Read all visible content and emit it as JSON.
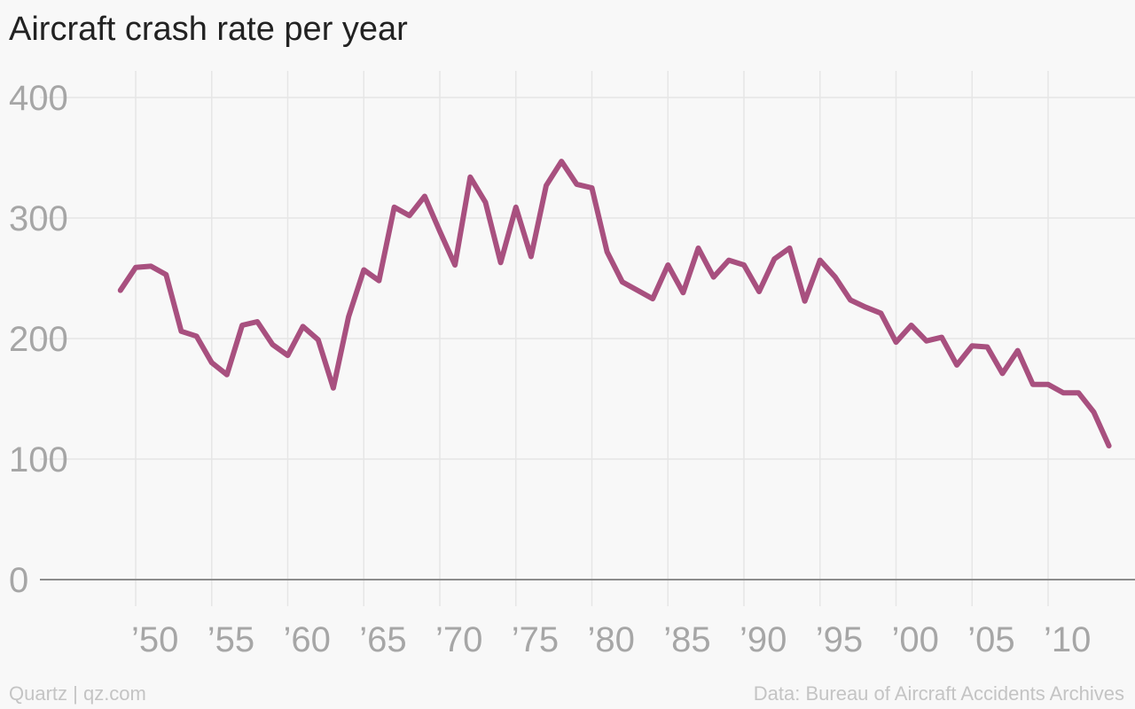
{
  "title": "Aircraft crash rate per year",
  "footer": {
    "source_left": "Quartz | qz.com",
    "source_right": "Data: Bureau of Aircraft Accidents Archives"
  },
  "colors": {
    "line": "#a8507f",
    "grid": "#e6e6e6",
    "axis": "#8c8c8c",
    "tick_text": "#a6a6a6",
    "background": "#f8f8f8"
  },
  "chart_data": {
    "type": "line",
    "title": "Aircraft crash rate per year",
    "xlabel": "",
    "ylabel": "",
    "xlim": [
      1947,
      2014.5
    ],
    "ylim": [
      0,
      400
    ],
    "grid": true,
    "yticks": [
      0,
      100,
      200,
      300,
      400
    ],
    "ytick_labels": [
      "0",
      "100",
      "200",
      "300",
      "400"
    ],
    "xticks": [
      1950,
      1955,
      1960,
      1965,
      1970,
      1975,
      1980,
      1985,
      1990,
      1995,
      2000,
      2005,
      2010
    ],
    "xtick_labels": [
      "’50",
      "’55",
      "’60",
      "’65",
      "’70",
      "’75",
      "’80",
      "’85",
      "’90",
      "’95",
      "’00",
      "’05",
      "’10"
    ],
    "series": [
      {
        "x": [
          1949,
          1950,
          1951,
          1952,
          1953,
          1954,
          1955,
          1956,
          1957,
          1958,
          1959,
          1960,
          1961,
          1962,
          1963,
          1964,
          1965,
          1966,
          1967,
          1968,
          1969,
          1970,
          1971,
          1972,
          1973,
          1974,
          1975,
          1976,
          1977,
          1978,
          1979,
          1980,
          1981,
          1982,
          1983,
          1984,
          1985,
          1986,
          1987,
          1988,
          1989,
          1990,
          1991,
          1992,
          1993,
          1994,
          1995,
          1996,
          1997,
          1998,
          1999,
          2000,
          2001,
          2002,
          2003,
          2004,
          2005,
          2006,
          2007,
          2008,
          2009,
          2010,
          2011,
          2012,
          2013,
          2014
        ],
        "y": [
          240,
          259,
          260,
          253,
          206,
          202,
          180,
          170,
          211,
          214,
          195,
          186,
          210,
          199,
          159,
          218,
          257,
          248,
          309,
          302,
          318,
          289,
          261,
          334,
          313,
          263,
          309,
          268,
          327,
          347,
          328,
          325,
          272,
          247,
          240,
          233,
          261,
          238,
          275,
          251,
          265,
          261,
          239,
          266,
          275,
          231,
          265,
          251,
          232,
          226,
          221,
          197,
          211,
          198,
          201,
          178,
          194,
          193,
          171,
          190,
          162,
          162,
          155,
          155,
          139,
          111
        ]
      }
    ]
  }
}
